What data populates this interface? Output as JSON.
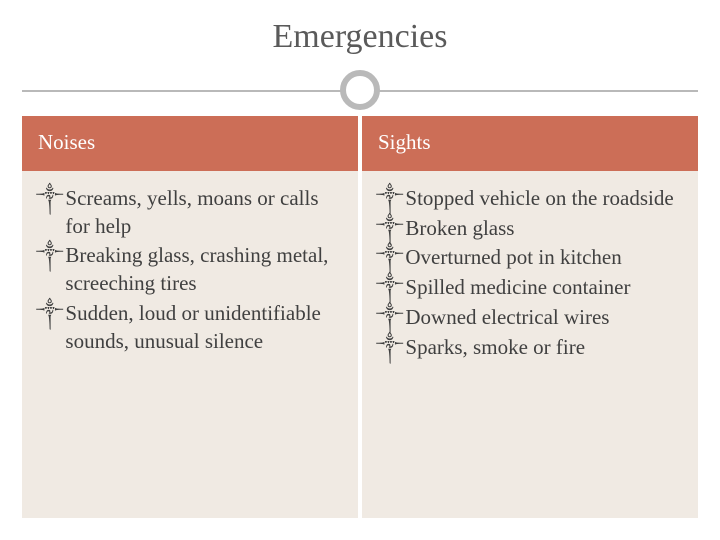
{
  "title": "Emergencies",
  "colors": {
    "header_bg": "#cc6e57",
    "body_bg": "#f0eae3",
    "title_color": "#5a5a5a",
    "header_text": "#ffffff",
    "body_text": "#404040",
    "rule_color": "#b9b9b9"
  },
  "bullet_glyph": "༒",
  "left": {
    "header": "Noises",
    "items": [
      "Screams, yells, moans or calls for help",
      "Breaking glass, crashing metal, screeching tires",
      "Sudden, loud or unidentifiable sounds, unusual silence"
    ]
  },
  "right": {
    "header": "Sights",
    "items": [
      "Stopped vehicle on the roadside",
      "Broken glass",
      "Overturned pot in kitchen",
      "Spilled medicine container",
      "Downed electrical wires",
      "Sparks, smoke or fire"
    ]
  }
}
